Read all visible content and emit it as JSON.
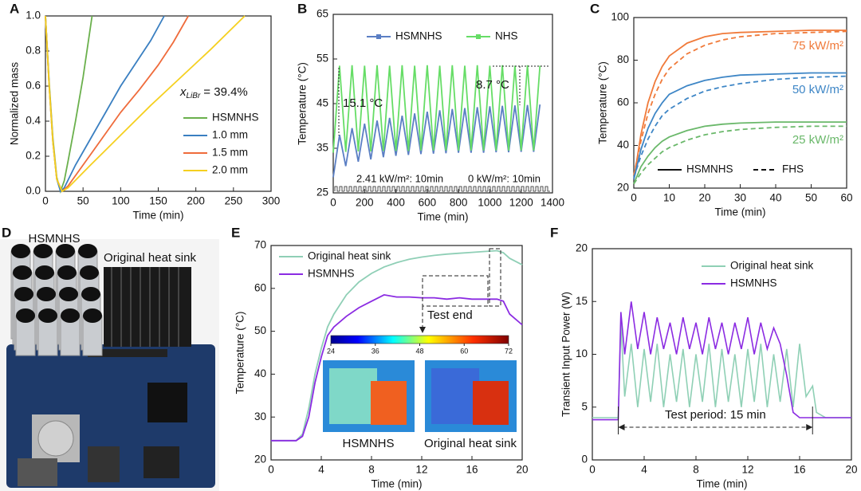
{
  "chart_data": [
    {
      "label": "A",
      "type": "line",
      "xlabel": "Time (min)",
      "ylabel": "Normalized mass",
      "xlim": [
        0,
        300
      ],
      "xticks": [
        0,
        50,
        100,
        150,
        200,
        250,
        300
      ],
      "ylim": [
        0,
        1
      ],
      "yticks": [
        {
          "value": 0,
          "label": "0.0"
        },
        0.2,
        0.4,
        0.6,
        0.8,
        {
          "value": 1,
          "label": "1.0"
        }
      ],
      "annotation": {
        "symbol": "x",
        "subscript": "LiBr",
        "text": "= 39.4%"
      },
      "series": [
        {
          "name": "HSMNHS",
          "color": "#6ab04c",
          "x": [
            0,
            5,
            10,
            15,
            20,
            25,
            30,
            40,
            50,
            62
          ],
          "values": [
            1,
            0.62,
            0.3,
            0.08,
            0,
            0.06,
            0.17,
            0.4,
            0.65,
            1
          ]
        },
        {
          "name": "1.0 mm",
          "color": "#3a7fc1",
          "x": [
            0,
            5,
            10,
            15,
            20,
            25,
            40,
            60,
            80,
            100,
            120,
            140,
            158
          ],
          "values": [
            1,
            0.6,
            0.28,
            0.07,
            0,
            0.02,
            0.15,
            0.3,
            0.45,
            0.6,
            0.73,
            0.86,
            1
          ]
        },
        {
          "name": "1.5 mm",
          "color": "#ef6b3b",
          "x": [
            0,
            5,
            10,
            15,
            22,
            30,
            50,
            75,
            100,
            125,
            150,
            170,
            190
          ],
          "values": [
            1,
            0.6,
            0.28,
            0.07,
            0,
            0.03,
            0.15,
            0.3,
            0.45,
            0.58,
            0.72,
            0.85,
            1
          ]
        },
        {
          "name": "2.0 mm",
          "color": "#f5d020",
          "x": [
            0,
            5,
            10,
            15,
            22,
            30,
            60,
            100,
            140,
            180,
            220,
            265
          ],
          "values": [
            1,
            0.6,
            0.28,
            0.07,
            0,
            0.02,
            0.15,
            0.32,
            0.49,
            0.65,
            0.81,
            1
          ]
        }
      ]
    },
    {
      "label": "B",
      "type": "line",
      "xlabel": "Time (min)",
      "ylabel": "Temperature (°C)",
      "xlim": [
        0,
        1400
      ],
      "xticks": [
        0,
        200,
        400,
        600,
        800,
        1000,
        1200,
        1400
      ],
      "ylim": [
        25,
        65
      ],
      "yticks": [
        25,
        35,
        45,
        55,
        65
      ],
      "annotations": [
        "15.1 °C",
        "8.7 °C",
        "2.41 kW/m²: 10min",
        "0 kW/m²: 10min"
      ],
      "x": [
        0,
        40,
        80,
        120,
        160,
        200,
        240,
        280,
        320,
        360,
        400,
        440,
        480,
        520,
        560,
        600,
        640,
        680,
        720,
        760,
        800,
        840,
        880,
        920,
        960,
        1000,
        1040,
        1080,
        1120,
        1160,
        1200,
        1240,
        1280,
        1320
      ],
      "series": [
        {
          "name": "HSMNHS",
          "color": "#5b7fc4",
          "values": [
            28.5,
            38,
            31,
            39.5,
            32,
            40.5,
            32.5,
            41.2,
            33,
            41.8,
            33.3,
            42.3,
            33.5,
            42.8,
            33.7,
            43.2,
            33.8,
            43.5,
            33.9,
            43.8,
            34,
            44,
            34,
            44.2,
            34,
            44.4,
            34.1,
            44.5,
            34.1,
            44.6,
            34.2,
            44.7,
            34.2,
            44.8
          ]
        },
        {
          "name": "NHS",
          "color": "#66dd66",
          "values": [
            34,
            53.5,
            34.2,
            53.6,
            34.3,
            53.5,
            34.3,
            53.6,
            34.4,
            53.5,
            34.4,
            53.6,
            34.4,
            53.5,
            34.5,
            53.6,
            34.5,
            53.5,
            34.5,
            53.6,
            34.5,
            53.5,
            34.5,
            53.6,
            34.5,
            53.5,
            34.5,
            53.6,
            34.5,
            53.5,
            34.5,
            53.6,
            34.5,
            53.5
          ]
        }
      ]
    },
    {
      "label": "C",
      "type": "line",
      "xlabel": "Time (min)",
      "ylabel": "Temperature (°C)",
      "xlim": [
        0,
        60
      ],
      "xticks": [
        0,
        10,
        20,
        30,
        40,
        50,
        60
      ],
      "ylim": [
        20,
        100
      ],
      "yticks": [
        20,
        40,
        60,
        80,
        100
      ],
      "x": [
        0,
        2,
        4,
        6,
        8,
        10,
        15,
        20,
        25,
        30,
        40,
        50,
        60
      ],
      "legend": [
        {
          "name": "HSMNHS",
          "dashed": false
        },
        {
          "name": "FHS",
          "dashed": true
        }
      ],
      "annotations": [
        {
          "text": "75 kW/m²",
          "color": "#f07a3a"
        },
        {
          "text": "50 kW/m²",
          "color": "#3e86c6"
        },
        {
          "text": "25 kW/m²",
          "color": "#6ab86a"
        }
      ],
      "series": [
        {
          "color": "#f07a3a",
          "dashed": false,
          "values": [
            24,
            45,
            60,
            70,
            77,
            82,
            88,
            91,
            92.5,
            93,
            93.5,
            94,
            94
          ]
        },
        {
          "color": "#f07a3a",
          "dashed": true,
          "values": [
            26,
            42,
            55,
            64,
            71,
            76,
            83,
            87,
            89.5,
            91,
            92.5,
            93,
            93.5
          ]
        },
        {
          "color": "#3e86c6",
          "dashed": false,
          "values": [
            24,
            38,
            48,
            55,
            60,
            64,
            68,
            70.5,
            72,
            73,
            73.5,
            74,
            74
          ]
        },
        {
          "color": "#3e86c6",
          "dashed": true,
          "values": [
            25,
            35,
            43,
            49,
            54,
            57,
            62,
            65.5,
            67.5,
            69,
            71,
            72,
            72.5
          ]
        },
        {
          "color": "#6ab86a",
          "dashed": false,
          "values": [
            22,
            30,
            35,
            39,
            42,
            44,
            47,
            49,
            50,
            50.5,
            51,
            51,
            51
          ]
        },
        {
          "color": "#6ab86a",
          "dashed": true,
          "values": [
            22,
            27,
            31,
            34,
            37,
            39,
            42.5,
            45,
            46.5,
            47.5,
            48.5,
            49,
            49
          ]
        }
      ]
    },
    {
      "label": "E",
      "type": "line",
      "xlabel": "Time (min)",
      "ylabel": "Temperature (°C)",
      "xlim": [
        0,
        20
      ],
      "xticks": [
        0,
        4,
        8,
        12,
        16,
        20
      ],
      "ylim": [
        20,
        70
      ],
      "yticks": [
        20,
        30,
        40,
        50,
        60,
        70
      ],
      "annotations": [
        "Test end"
      ],
      "colorbar_ticks": [
        24,
        36,
        48,
        60,
        72
      ],
      "inset_labels": [
        "HSMNHS",
        "Original heat sink"
      ],
      "x": [
        0,
        1,
        2,
        2.5,
        3,
        3.5,
        4,
        4.5,
        5,
        6,
        7,
        8,
        9,
        10,
        11,
        12,
        13,
        14,
        15,
        16,
        17,
        18,
        18.5,
        19,
        20
      ],
      "series": [
        {
          "name": "Original heat sink",
          "color": "#8fcfb6",
          "values": [
            24.5,
            24.5,
            24.5,
            26,
            32,
            40,
            46,
            51,
            54,
            58.5,
            61.5,
            63.5,
            65,
            66,
            66.8,
            67.3,
            67.7,
            68,
            68.2,
            68.4,
            68.6,
            68.8,
            68.3,
            67,
            65.5
          ]
        },
        {
          "name": "HSMNHS",
          "color": "#8b2be2",
          "values": [
            24.5,
            24.5,
            24.5,
            25.5,
            30,
            38,
            44,
            49,
            51,
            53.5,
            55.5,
            57,
            58.5,
            58,
            58,
            57.8,
            57.8,
            57.5,
            57.8,
            57.5,
            57.5,
            57.5,
            57,
            54,
            51.5
          ]
        }
      ]
    },
    {
      "label": "F",
      "type": "line",
      "xlabel": "Time (min)",
      "ylabel": "Transient Input Power (W)",
      "xlim": [
        0,
        20
      ],
      "xticks": [
        0,
        4,
        8,
        12,
        16,
        20
      ],
      "ylim": [
        0,
        20
      ],
      "yticks": [
        0,
        5,
        10,
        15,
        20
      ],
      "annotations": [
        "Test period: 15 min"
      ],
      "x": [
        0,
        1,
        2,
        2.2,
        2.5,
        3,
        3.5,
        4,
        4.5,
        5,
        5.5,
        6,
        6.5,
        7,
        7.5,
        8,
        8.5,
        9,
        9.5,
        10,
        10.5,
        11,
        11.5,
        12,
        12.5,
        13,
        13.5,
        14,
        14.5,
        15,
        15.5,
        16,
        16.5,
        17,
        17.3,
        18,
        19,
        20
      ],
      "series": [
        {
          "name": "Original heat sink",
          "color": "#8fd0b5",
          "values": [
            4,
            4,
            4,
            13,
            6,
            11,
            5,
            10.5,
            5.5,
            11,
            5,
            10,
            5.5,
            10.5,
            5,
            10,
            5.5,
            11,
            5,
            10.5,
            5.5,
            10,
            5,
            10.5,
            5.5,
            11,
            5,
            10,
            5.5,
            10.5,
            5,
            11,
            6,
            7,
            4.5,
            4,
            4,
            4
          ]
        },
        {
          "name": "HSMNHS",
          "color": "#8b2be2",
          "values": [
            3.8,
            3.8,
            3.8,
            14,
            10,
            15,
            10.5,
            14,
            10,
            13.5,
            10.5,
            13,
            10,
            13.5,
            10.5,
            13,
            10,
            13.5,
            10.5,
            13,
            10,
            13,
            10.5,
            13.5,
            10,
            13,
            10.5,
            12.5,
            11,
            8,
            4.5,
            4,
            4,
            4,
            4,
            4,
            4,
            4
          ]
        }
      ]
    }
  ],
  "photo_panel": {
    "label": "D",
    "labels": [
      "HSMNHS",
      "Original heat sink"
    ]
  }
}
